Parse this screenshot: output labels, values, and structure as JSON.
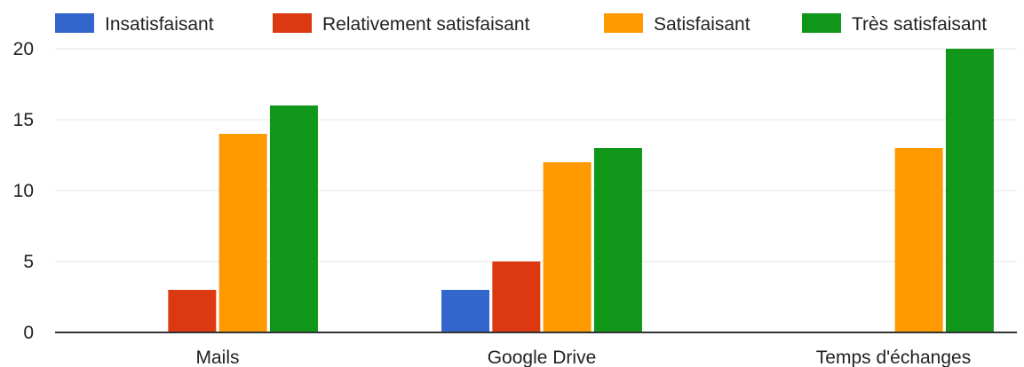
{
  "chart_data": {
    "type": "bar",
    "categories": [
      "Mails",
      "Google Drive",
      "Temps d'échanges"
    ],
    "series": [
      {
        "name": "Insatisfaisant",
        "color": "#3366cc",
        "values": [
          0,
          3,
          0
        ]
      },
      {
        "name": "Relativement satisfaisant",
        "color": "#dc3912",
        "values": [
          3,
          5,
          0
        ]
      },
      {
        "name": "Satisfaisant",
        "color": "#ff9900",
        "values": [
          14,
          12,
          13
        ]
      },
      {
        "name": "Très satisfaisant",
        "color": "#109618",
        "values": [
          16,
          13,
          20
        ]
      }
    ],
    "ylim": [
      0,
      20
    ],
    "yticks": [
      "0",
      "5",
      "10",
      "15",
      "20"
    ],
    "grid": true,
    "legend_position": "top"
  }
}
